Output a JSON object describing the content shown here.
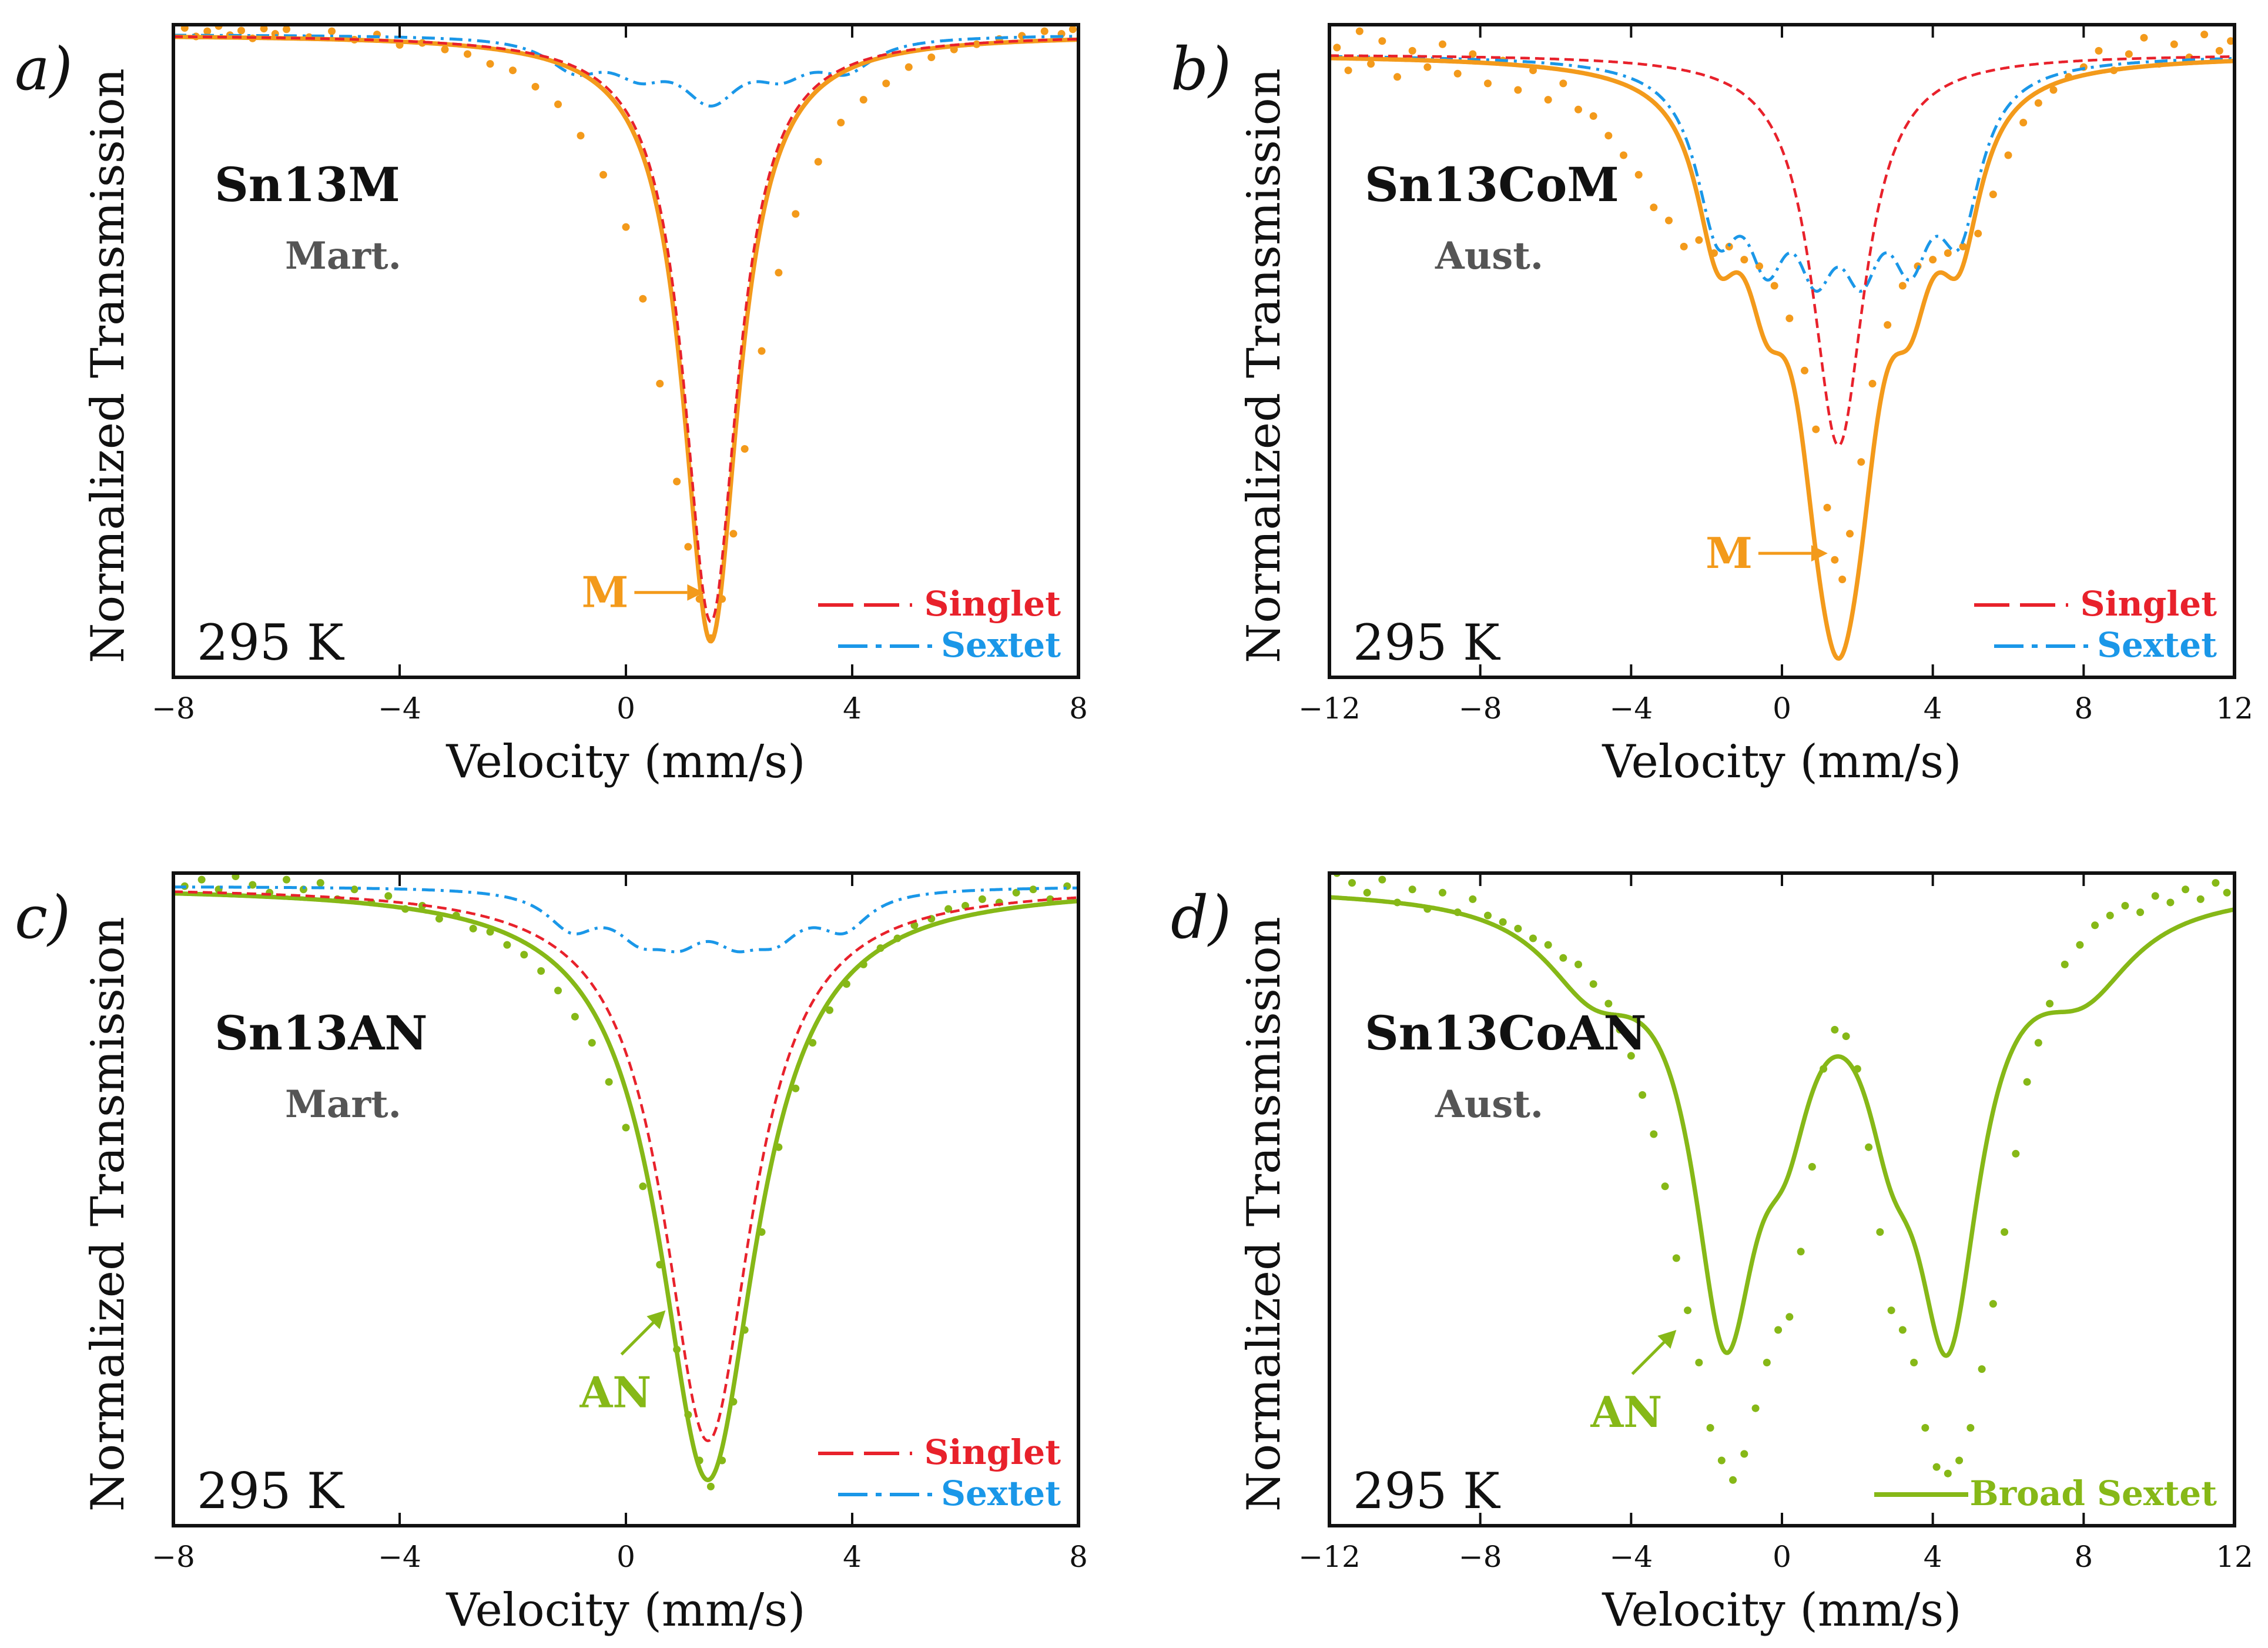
{
  "colors": {
    "singlet": "#e8212b",
    "sextet": "#1a97e8",
    "orange": "#f39a1b",
    "green": "#86b817",
    "grey": "#555555",
    "black": "#111111"
  },
  "chart_data": [
    {
      "id": "a",
      "type": "line",
      "panel_label": "a)",
      "sample": "Sn13M",
      "phase": "Mart.",
      "temperature": "295 K",
      "xlabel": "Velocity (mm/s)",
      "ylabel": "Normalized Transmission",
      "xlim": [
        -8,
        8
      ],
      "xticks": [
        -8,
        -4,
        0,
        4,
        8
      ],
      "xtick_labels": [
        "−8",
        "−4",
        "0",
        "4",
        "8"
      ],
      "ylim": [
        0.0,
        1.0
      ],
      "grid": false,
      "theme": "orange",
      "annotation": {
        "text": "M",
        "points_to": [
          1.5,
          0.13
        ]
      },
      "legend": {
        "position": "bottom-right",
        "entries": [
          {
            "label": "Singlet",
            "style": "dashed",
            "color": "singlet"
          },
          {
            "label": "Sextet",
            "style": "dashdot",
            "color": "sextet"
          }
        ]
      },
      "components": {
        "singlet": {
          "center": 1.5,
          "depth": 0.9,
          "hwhm": 0.58,
          "baseline": 0.985
        },
        "sextet": {
          "center": 1.5,
          "lines": [
            -2.4,
            -1.25,
            -0.1,
            0.1,
            1.25,
            2.4
          ],
          "depth": 0.045,
          "hwhm": 0.6,
          "baseline": 0.985
        },
        "fit": {
          "center": 1.5,
          "depth": 0.93,
          "hwhm": 0.6,
          "baseline": 0.985
        }
      },
      "points": [
        [
          -7.8,
          0.995
        ],
        [
          -7.6,
          0.982
        ],
        [
          -7.4,
          0.99
        ],
        [
          -7.2,
          0.998
        ],
        [
          -7.0,
          0.984
        ],
        [
          -6.8,
          0.991
        ],
        [
          -6.6,
          0.979
        ],
        [
          -6.4,
          0.994
        ],
        [
          -6.2,
          0.986
        ],
        [
          -6.0,
          0.993
        ],
        [
          -5.6,
          0.981
        ],
        [
          -5.2,
          0.99
        ],
        [
          -4.8,
          0.977
        ],
        [
          -4.4,
          0.985
        ],
        [
          -4.0,
          0.969
        ],
        [
          -3.6,
          0.972
        ],
        [
          -3.2,
          0.962
        ],
        [
          -2.8,
          0.955
        ],
        [
          -2.4,
          0.94
        ],
        [
          -2.0,
          0.93
        ],
        [
          -1.6,
          0.905
        ],
        [
          -1.2,
          0.878
        ],
        [
          -0.8,
          0.83
        ],
        [
          -0.4,
          0.77
        ],
        [
          0.0,
          0.69
        ],
        [
          0.3,
          0.58
        ],
        [
          0.6,
          0.45
        ],
        [
          0.9,
          0.3
        ],
        [
          1.1,
          0.2
        ],
        [
          1.3,
          0.12
        ],
        [
          1.5,
          0.06
        ],
        [
          1.7,
          0.12
        ],
        [
          1.9,
          0.22
        ],
        [
          2.1,
          0.35
        ],
        [
          2.4,
          0.5
        ],
        [
          2.7,
          0.62
        ],
        [
          3.0,
          0.71
        ],
        [
          3.4,
          0.79
        ],
        [
          3.8,
          0.85
        ],
        [
          4.2,
          0.885
        ],
        [
          4.6,
          0.91
        ],
        [
          5.0,
          0.935
        ],
        [
          5.4,
          0.95
        ],
        [
          5.8,
          0.962
        ],
        [
          6.2,
          0.97
        ],
        [
          6.6,
          0.978
        ],
        [
          7.0,
          0.983
        ],
        [
          7.4,
          0.99
        ],
        [
          7.7,
          0.986
        ],
        [
          7.9,
          0.993
        ]
      ]
    },
    {
      "id": "b",
      "type": "line",
      "panel_label": "b)",
      "sample": "Sn13CoM",
      "phase": "Aust.",
      "temperature": "295 K",
      "xlabel": "Velocity (mm/s)",
      "ylabel": "Normalized Transmission",
      "xlim": [
        -12,
        12
      ],
      "xticks": [
        -12,
        -8,
        -4,
        0,
        4,
        8,
        12
      ],
      "xtick_labels": [
        "−12",
        "−8",
        "−4",
        "0",
        "4",
        "8",
        "12"
      ],
      "ylim": [
        0.0,
        1.0
      ],
      "grid": false,
      "theme": "orange",
      "annotation": {
        "text": "M",
        "points_to": [
          1.4,
          0.19
        ]
      },
      "legend": {
        "position": "bottom-right",
        "entries": [
          {
            "label": "Singlet",
            "style": "dashed",
            "color": "singlet"
          },
          {
            "label": "Sextet",
            "style": "dashdot",
            "color": "sextet"
          }
        ]
      },
      "components": {
        "singlet": {
          "center": 1.5,
          "depth": 0.6,
          "hwhm": 0.85,
          "baseline": 0.955
        },
        "sextet": {
          "center": 1.5,
          "lines": [
            -3.2,
            -1.9,
            -0.6,
            0.6,
            1.9,
            3.2
          ],
          "depth": 0.22,
          "hwhm": 0.7,
          "baseline": 0.955
        },
        "fit": {
          "center": 1.5,
          "depth": 0.79,
          "baseline": 0.955
        }
      },
      "points": [
        [
          -11.8,
          0.965
        ],
        [
          -11.5,
          0.93
        ],
        [
          -11.2,
          0.99
        ],
        [
          -10.9,
          0.94
        ],
        [
          -10.6,
          0.975
        ],
        [
          -10.2,
          0.92
        ],
        [
          -9.8,
          0.96
        ],
        [
          -9.4,
          0.935
        ],
        [
          -9.0,
          0.97
        ],
        [
          -8.6,
          0.925
        ],
        [
          -8.2,
          0.955
        ],
        [
          -7.8,
          0.91
        ],
        [
          -7.4,
          0.945
        ],
        [
          -7.0,
          0.9
        ],
        [
          -6.6,
          0.93
        ],
        [
          -6.2,
          0.885
        ],
        [
          -5.8,
          0.91
        ],
        [
          -5.4,
          0.87
        ],
        [
          -5.0,
          0.86
        ],
        [
          -4.6,
          0.83
        ],
        [
          -4.2,
          0.8
        ],
        [
          -3.8,
          0.77
        ],
        [
          -3.4,
          0.72
        ],
        [
          -3.0,
          0.7
        ],
        [
          -2.6,
          0.66
        ],
        [
          -2.2,
          0.67
        ],
        [
          -1.8,
          0.65
        ],
        [
          -1.4,
          0.66
        ],
        [
          -1.0,
          0.64
        ],
        [
          -0.6,
          0.63
        ],
        [
          -0.2,
          0.6
        ],
        [
          0.2,
          0.55
        ],
        [
          0.6,
          0.47
        ],
        [
          0.9,
          0.38
        ],
        [
          1.2,
          0.26
        ],
        [
          1.4,
          0.18
        ],
        [
          1.6,
          0.15
        ],
        [
          1.8,
          0.22
        ],
        [
          2.1,
          0.33
        ],
        [
          2.4,
          0.45
        ],
        [
          2.8,
          0.54
        ],
        [
          3.2,
          0.6
        ],
        [
          3.6,
          0.63
        ],
        [
          4.0,
          0.64
        ],
        [
          4.4,
          0.65
        ],
        [
          4.8,
          0.66
        ],
        [
          5.2,
          0.68
        ],
        [
          5.6,
          0.74
        ],
        [
          6.0,
          0.8
        ],
        [
          6.4,
          0.85
        ],
        [
          6.8,
          0.88
        ],
        [
          7.2,
          0.9
        ],
        [
          7.6,
          0.92
        ],
        [
          8.0,
          0.935
        ],
        [
          8.4,
          0.96
        ],
        [
          8.8,
          0.93
        ],
        [
          9.2,
          0.955
        ],
        [
          9.6,
          0.98
        ],
        [
          10.0,
          0.94
        ],
        [
          10.4,
          0.97
        ],
        [
          10.8,
          0.95
        ],
        [
          11.2,
          0.985
        ],
        [
          11.6,
          0.96
        ],
        [
          11.9,
          0.975
        ]
      ]
    },
    {
      "id": "c",
      "type": "line",
      "panel_label": "c)",
      "sample": "Sn13AN",
      "phase": "Mart.",
      "temperature": "295 K",
      "xlabel": "Velocity (mm/s)",
      "ylabel": "Normalized Transmission",
      "xlim": [
        -8,
        8
      ],
      "xticks": [
        -8,
        -4,
        0,
        4,
        8
      ],
      "xtick_labels": [
        "−8",
        "−4",
        "0",
        "4",
        "8"
      ],
      "ylim": [
        0.0,
        1.0
      ],
      "grid": false,
      "theme": "green",
      "annotation": {
        "text": "AN",
        "points_to": [
          0.7,
          0.33
        ]
      },
      "legend": {
        "position": "bottom-right",
        "entries": [
          {
            "label": "Singlet",
            "style": "dashed",
            "color": "singlet"
          },
          {
            "label": "Sextet",
            "style": "dashdot",
            "color": "sextet"
          }
        ]
      },
      "components": {
        "singlet": {
          "center": 1.45,
          "depth": 0.85,
          "hwhm": 0.95,
          "baseline": 0.98
        },
        "sextet": {
          "center": 1.45,
          "lines": [
            -2.4,
            -1.2,
            -0.5,
            0.5,
            1.2,
            2.4
          ],
          "depth": 0.055,
          "hwhm": 0.55,
          "baseline": 0.98
        },
        "fit": {
          "center": 1.45,
          "depth": 0.91,
          "hwhm": 1.05,
          "baseline": 0.98
        }
      },
      "points": [
        [
          -7.8,
          0.98
        ],
        [
          -7.5,
          0.99
        ],
        [
          -7.2,
          0.975
        ],
        [
          -6.9,
          0.995
        ],
        [
          -6.6,
          0.982
        ],
        [
          -6.3,
          0.97
        ],
        [
          -6.0,
          0.99
        ],
        [
          -5.7,
          0.975
        ],
        [
          -5.4,
          0.985
        ],
        [
          -5.1,
          0.96
        ],
        [
          -4.8,
          0.975
        ],
        [
          -4.5,
          0.955
        ],
        [
          -4.2,
          0.965
        ],
        [
          -3.9,
          0.945
        ],
        [
          -3.6,
          0.95
        ],
        [
          -3.3,
          0.93
        ],
        [
          -3.0,
          0.935
        ],
        [
          -2.7,
          0.915
        ],
        [
          -2.4,
          0.91
        ],
        [
          -2.1,
          0.89
        ],
        [
          -1.8,
          0.875
        ],
        [
          -1.5,
          0.85
        ],
        [
          -1.2,
          0.82
        ],
        [
          -0.9,
          0.78
        ],
        [
          -0.6,
          0.74
        ],
        [
          -0.3,
          0.68
        ],
        [
          0.0,
          0.61
        ],
        [
          0.3,
          0.52
        ],
        [
          0.6,
          0.4
        ],
        [
          0.9,
          0.27
        ],
        [
          1.1,
          0.17
        ],
        [
          1.3,
          0.1
        ],
        [
          1.5,
          0.06
        ],
        [
          1.7,
          0.1
        ],
        [
          1.9,
          0.19
        ],
        [
          2.1,
          0.3
        ],
        [
          2.4,
          0.45
        ],
        [
          2.7,
          0.58
        ],
        [
          3.0,
          0.67
        ],
        [
          3.3,
          0.74
        ],
        [
          3.6,
          0.79
        ],
        [
          3.9,
          0.83
        ],
        [
          4.2,
          0.86
        ],
        [
          4.5,
          0.885
        ],
        [
          4.8,
          0.9
        ],
        [
          5.1,
          0.92
        ],
        [
          5.4,
          0.93
        ],
        [
          5.7,
          0.945
        ],
        [
          6.0,
          0.95
        ],
        [
          6.3,
          0.96
        ],
        [
          6.6,
          0.955
        ],
        [
          6.9,
          0.97
        ],
        [
          7.2,
          0.975
        ],
        [
          7.5,
          0.96
        ],
        [
          7.8,
          0.98
        ]
      ]
    },
    {
      "id": "d",
      "type": "line",
      "panel_label": "d)",
      "sample": "Sn13CoAN",
      "phase": "Aust.",
      "temperature": "295 K",
      "xlabel": "Velocity (mm/s)",
      "ylabel": "Normalized Transmission",
      "xlim": [
        -12,
        12
      ],
      "xticks": [
        -12,
        -8,
        -4,
        0,
        4,
        8,
        12
      ],
      "xtick_labels": [
        "−12",
        "−8",
        "−4",
        "0",
        "4",
        "8",
        "12"
      ],
      "ylim": [
        0.0,
        1.0
      ],
      "grid": false,
      "theme": "green",
      "annotation": {
        "text": "AN",
        "points_to": [
          -2.8,
          0.3
        ]
      },
      "legend": {
        "position": "bottom-right",
        "entries": [
          {
            "label": "Broad Sextet",
            "style": "solid",
            "color": "green"
          }
        ]
      },
      "components": {
        "fit": {
          "baseline": 0.98
        }
      },
      "points": [
        [
          -11.8,
          1.0
        ],
        [
          -11.4,
          0.985
        ],
        [
          -11.0,
          0.97
        ],
        [
          -10.6,
          0.99
        ],
        [
          -10.2,
          0.955
        ],
        [
          -9.8,
          0.975
        ],
        [
          -9.4,
          0.945
        ],
        [
          -9.0,
          0.97
        ],
        [
          -8.6,
          0.94
        ],
        [
          -8.2,
          0.96
        ],
        [
          -7.8,
          0.935
        ],
        [
          -7.4,
          0.925
        ],
        [
          -7.0,
          0.915
        ],
        [
          -6.6,
          0.9
        ],
        [
          -6.2,
          0.89
        ],
        [
          -5.8,
          0.87
        ],
        [
          -5.4,
          0.86
        ],
        [
          -5.0,
          0.83
        ],
        [
          -4.6,
          0.8
        ],
        [
          -4.3,
          0.76
        ],
        [
          -4.0,
          0.72
        ],
        [
          -3.7,
          0.66
        ],
        [
          -3.4,
          0.6
        ],
        [
          -3.1,
          0.52
        ],
        [
          -2.8,
          0.41
        ],
        [
          -2.5,
          0.33
        ],
        [
          -2.2,
          0.25
        ],
        [
          -1.9,
          0.15
        ],
        [
          -1.6,
          0.1
        ],
        [
          -1.3,
          0.07
        ],
        [
          -1.0,
          0.11
        ],
        [
          -0.7,
          0.18
        ],
        [
          -0.4,
          0.25
        ],
        [
          -0.1,
          0.3
        ],
        [
          0.2,
          0.32
        ],
        [
          0.5,
          0.42
        ],
        [
          0.8,
          0.55
        ],
        [
          1.1,
          0.7
        ],
        [
          1.4,
          0.76
        ],
        [
          1.7,
          0.75
        ],
        [
          2.0,
          0.7
        ],
        [
          2.3,
          0.58
        ],
        [
          2.6,
          0.45
        ],
        [
          2.9,
          0.33
        ],
        [
          3.2,
          0.3
        ],
        [
          3.5,
          0.25
        ],
        [
          3.8,
          0.15
        ],
        [
          4.1,
          0.09
        ],
        [
          4.4,
          0.08
        ],
        [
          4.7,
          0.1
        ],
        [
          5.0,
          0.15
        ],
        [
          5.3,
          0.24
        ],
        [
          5.6,
          0.34
        ],
        [
          5.9,
          0.45
        ],
        [
          6.2,
          0.57
        ],
        [
          6.5,
          0.68
        ],
        [
          6.8,
          0.74
        ],
        [
          7.1,
          0.8
        ],
        [
          7.5,
          0.86
        ],
        [
          7.9,
          0.89
        ],
        [
          8.3,
          0.92
        ],
        [
          8.7,
          0.935
        ],
        [
          9.1,
          0.95
        ],
        [
          9.5,
          0.94
        ],
        [
          9.9,
          0.965
        ],
        [
          10.3,
          0.955
        ],
        [
          10.7,
          0.975
        ],
        [
          11.1,
          0.96
        ],
        [
          11.5,
          0.985
        ],
        [
          11.8,
          0.97
        ]
      ]
    }
  ]
}
